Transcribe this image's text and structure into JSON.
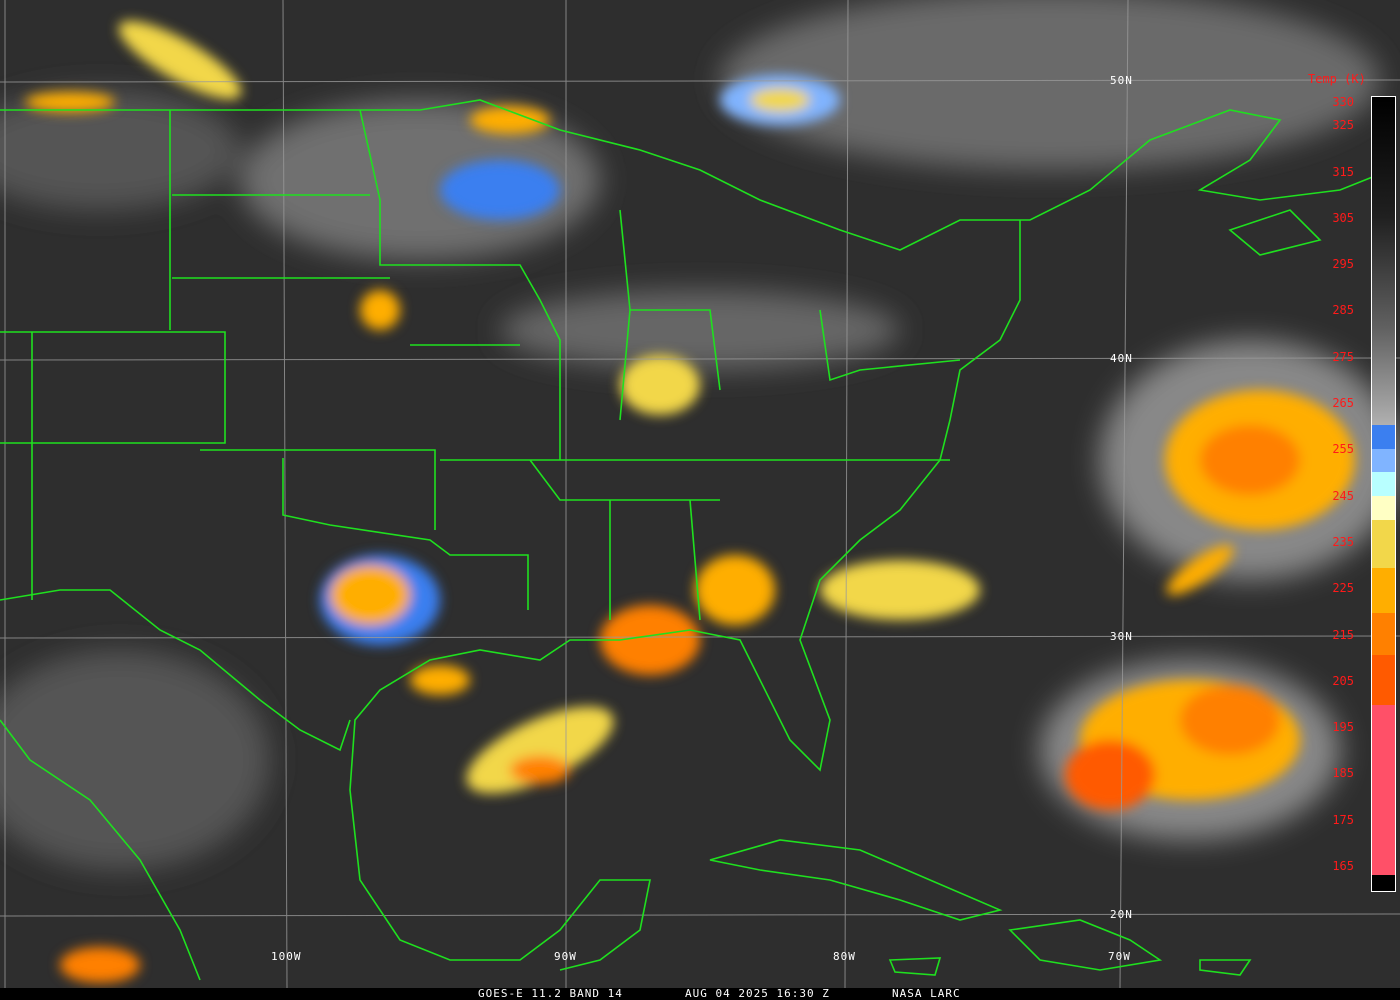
{
  "footer": {
    "satellite": "GOES-E 11.2 BAND 14",
    "datetime": "AUG 04 2025 16:30 Z",
    "credit": "NASA LARC"
  },
  "colorbar": {
    "title": "Temp (K)",
    "ticks": [
      "330",
      "325",
      "315",
      "305",
      "295",
      "285",
      "275",
      "265",
      "255",
      "245",
      "235",
      "225",
      "215",
      "205",
      "195",
      "185",
      "175",
      "165"
    ],
    "colors": {
      "cold_top": "#000000",
      "gray": "#b0b0b0",
      "blue": "#3b7ff0",
      "light_blue": "#80b4ff",
      "cyan": "#b8ffff",
      "pale_yellow": "#ffffc4",
      "yellow": "#f2d74a",
      "orange": "#ffae00",
      "dark_orange": "#ff8000",
      "red_orange": "#ff5a00",
      "pink": "#ff5068"
    }
  },
  "grid": {
    "lat_labels": [
      "50N",
      "40N",
      "30N",
      "20N"
    ],
    "lon_labels": [
      "100W",
      "90W",
      "80W",
      "70W"
    ]
  },
  "colors": {
    "boundaries": "#1fe01f",
    "gridlines": "#9a9a9a",
    "background": "#2e2e2e"
  }
}
